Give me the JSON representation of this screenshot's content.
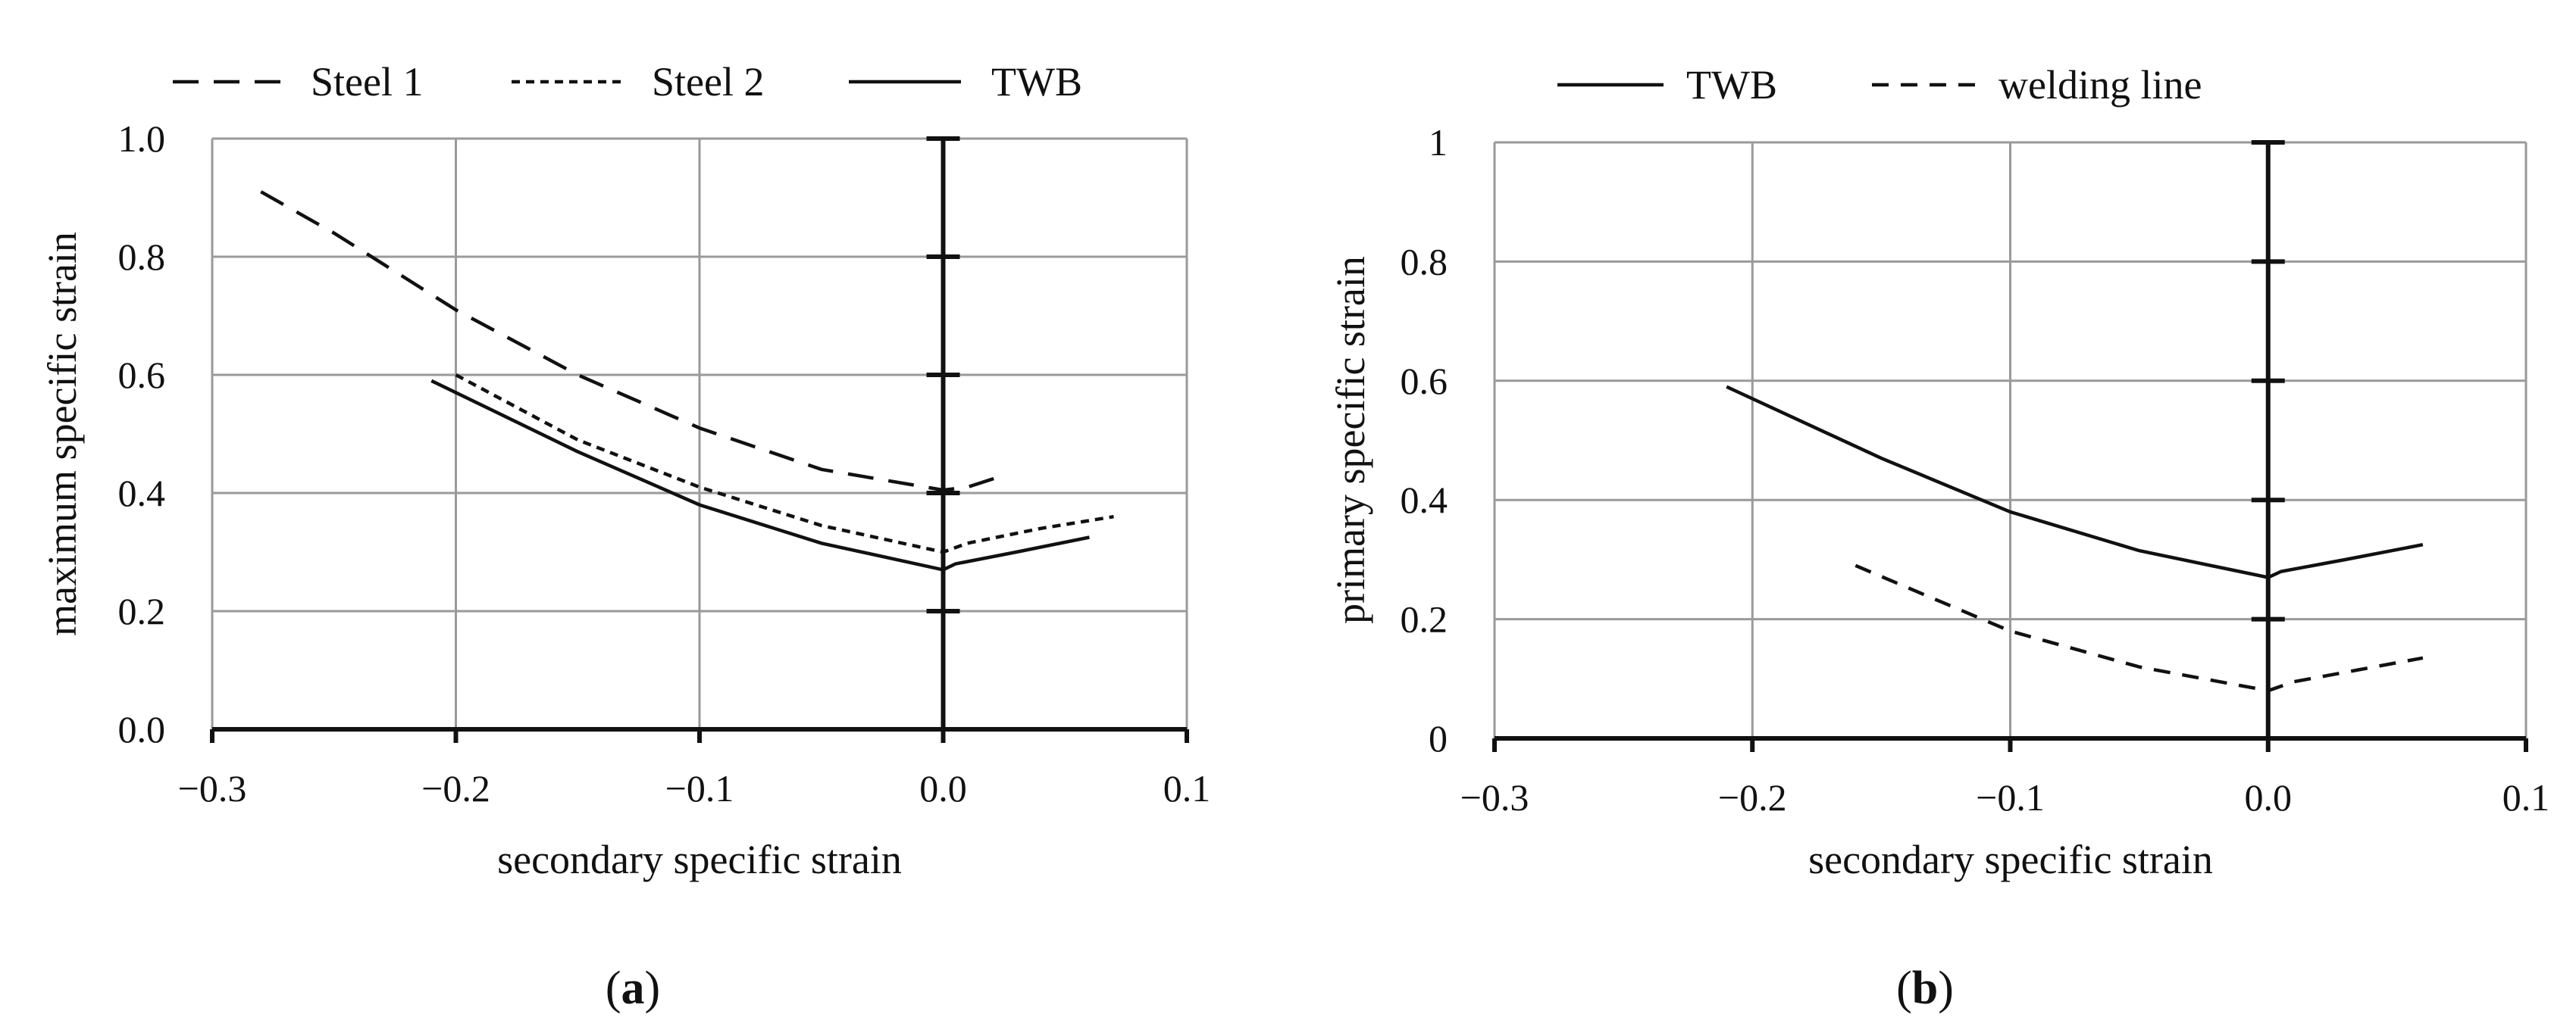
{
  "chart_data": [
    {
      "type": "line",
      "panel_label": "a",
      "xlabel": "secondary specific strain",
      "ylabel": "maximum specific strain",
      "xlim": [
        -0.3,
        0.1
      ],
      "ylim": [
        0.0,
        1.0
      ],
      "xticks": [
        -0.3,
        -0.2,
        -0.1,
        0.0,
        0.1
      ],
      "xtick_labels": [
        "−0.3",
        "−0.2",
        "−0.1",
        "0.0",
        "0.1"
      ],
      "yticks": [
        0.0,
        0.2,
        0.4,
        0.6,
        0.8,
        1.0
      ],
      "ytick_labels": [
        "0.0",
        "0.2",
        "0.4",
        "0.6",
        "0.8",
        "1.0"
      ],
      "grid": true,
      "legend_position": "top",
      "series": [
        {
          "name": "Steel 1",
          "dash": "long-dash",
          "x": [
            -0.28,
            -0.25,
            -0.2,
            -0.15,
            -0.1,
            -0.05,
            0.0,
            0.01,
            0.025
          ],
          "y": [
            0.91,
            0.84,
            0.71,
            0.6,
            0.51,
            0.44,
            0.405,
            0.41,
            0.43
          ]
        },
        {
          "name": "Steel 2",
          "dash": "short-dash",
          "x": [
            -0.2,
            -0.15,
            -0.1,
            -0.05,
            0.0,
            0.01,
            0.04,
            0.07
          ],
          "y": [
            0.6,
            0.49,
            0.41,
            0.345,
            0.3,
            0.315,
            0.34,
            0.36
          ]
        },
        {
          "name": "TWB",
          "dash": "solid",
          "x": [
            -0.21,
            -0.15,
            -0.1,
            -0.05,
            0.0,
            0.005,
            0.03,
            0.06
          ],
          "y": [
            0.59,
            0.47,
            0.38,
            0.315,
            0.27,
            0.28,
            0.3,
            0.325
          ]
        }
      ]
    },
    {
      "type": "line",
      "panel_label": "b",
      "xlabel": "secondary specific strain",
      "ylabel": "primary specific strain",
      "xlim": [
        -0.3,
        0.1
      ],
      "ylim": [
        0,
        1
      ],
      "xticks": [
        -0.3,
        -0.2,
        -0.1,
        0.0,
        0.1
      ],
      "xtick_labels": [
        "−0.3",
        "−0.2",
        "−0.1",
        "0.0",
        "0.1"
      ],
      "yticks": [
        0,
        0.2,
        0.4,
        0.6,
        0.8,
        1
      ],
      "ytick_labels": [
        "0",
        "0.2",
        "0.4",
        "0.6",
        "0.8",
        "1"
      ],
      "grid": true,
      "legend_position": "top",
      "series": [
        {
          "name": "TWB",
          "dash": "solid",
          "x": [
            -0.21,
            -0.15,
            -0.1,
            -0.05,
            0.0,
            0.005,
            0.03,
            0.06
          ],
          "y": [
            0.59,
            0.47,
            0.38,
            0.315,
            0.27,
            0.28,
            0.3,
            0.325
          ]
        },
        {
          "name": "welding line",
          "dash": "medium-dash",
          "x": [
            -0.16,
            -0.1,
            -0.05,
            0.0,
            0.01,
            0.035,
            0.06
          ],
          "y": [
            0.29,
            0.18,
            0.12,
            0.08,
            0.095,
            0.115,
            0.135
          ]
        }
      ]
    }
  ]
}
